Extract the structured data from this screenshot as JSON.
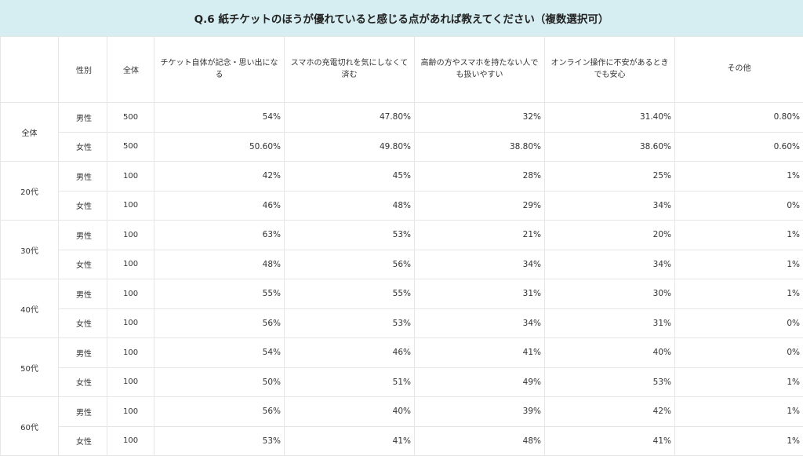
{
  "title": "Q.6 紙チケットのほうが優れていると感じる点があれば教えてください（複数選択可）",
  "headers": {
    "age": "",
    "sex": "性別",
    "n": "全体",
    "options": [
      "チケット自体が記念・思い出になる",
      "スマホの充電切れを気にしなくて済む",
      "高齢の方やスマホを持たない人でも扱いやすい",
      "オンライン操作に不安があるときでも安心",
      "その他"
    ]
  },
  "groups": [
    {
      "age": "全体",
      "rows": [
        {
          "sex": "男性",
          "n": "500",
          "values": [
            "54%",
            "47.80%",
            "32%",
            "31.40%",
            "0.80%"
          ]
        },
        {
          "sex": "女性",
          "n": "500",
          "values": [
            "50.60%",
            "49.80%",
            "38.80%",
            "38.60%",
            "0.60%"
          ]
        }
      ]
    },
    {
      "age": "20代",
      "rows": [
        {
          "sex": "男性",
          "n": "100",
          "values": [
            "42%",
            "45%",
            "28%",
            "25%",
            "1%"
          ]
        },
        {
          "sex": "女性",
          "n": "100",
          "values": [
            "46%",
            "48%",
            "29%",
            "34%",
            "0%"
          ]
        }
      ]
    },
    {
      "age": "30代",
      "rows": [
        {
          "sex": "男性",
          "n": "100",
          "values": [
            "63%",
            "53%",
            "21%",
            "20%",
            "1%"
          ]
        },
        {
          "sex": "女性",
          "n": "100",
          "values": [
            "48%",
            "56%",
            "34%",
            "34%",
            "1%"
          ]
        }
      ]
    },
    {
      "age": "40代",
      "rows": [
        {
          "sex": "男性",
          "n": "100",
          "values": [
            "55%",
            "55%",
            "31%",
            "30%",
            "1%"
          ]
        },
        {
          "sex": "女性",
          "n": "100",
          "values": [
            "56%",
            "53%",
            "34%",
            "31%",
            "0%"
          ]
        }
      ]
    },
    {
      "age": "50代",
      "rows": [
        {
          "sex": "男性",
          "n": "100",
          "values": [
            "54%",
            "46%",
            "41%",
            "40%",
            "0%"
          ]
        },
        {
          "sex": "女性",
          "n": "100",
          "values": [
            "50%",
            "51%",
            "49%",
            "53%",
            "1%"
          ]
        }
      ]
    },
    {
      "age": "60代",
      "rows": [
        {
          "sex": "男性",
          "n": "100",
          "values": [
            "56%",
            "40%",
            "39%",
            "42%",
            "1%"
          ]
        },
        {
          "sex": "女性",
          "n": "100",
          "values": [
            "53%",
            "41%",
            "48%",
            "41%",
            "1%"
          ]
        }
      ]
    }
  ]
}
